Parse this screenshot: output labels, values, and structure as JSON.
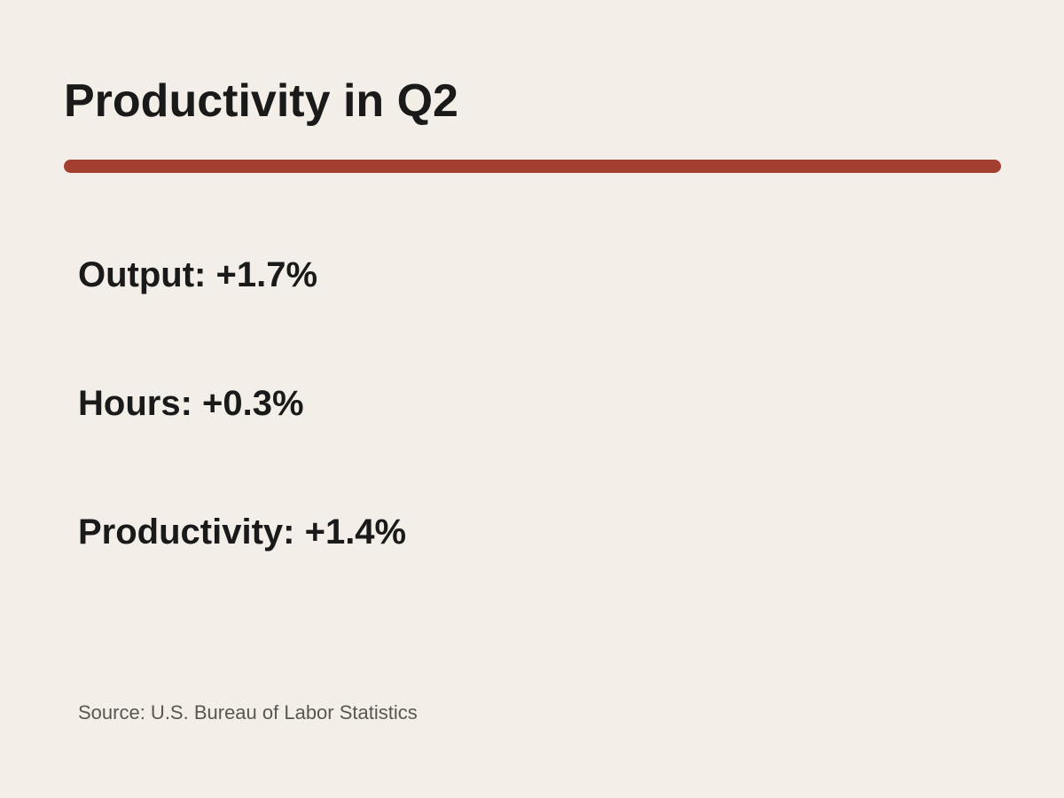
{
  "slide": {
    "title": "Productivity in Q2",
    "accent_color": "#a33f30",
    "stats": [
      {
        "text": "Output: +1.7%"
      },
      {
        "text": "Hours: +0.3%"
      },
      {
        "text": "Productivity: +1.4%"
      }
    ],
    "source": "Source: U.S. Bureau of Labor Statistics"
  }
}
